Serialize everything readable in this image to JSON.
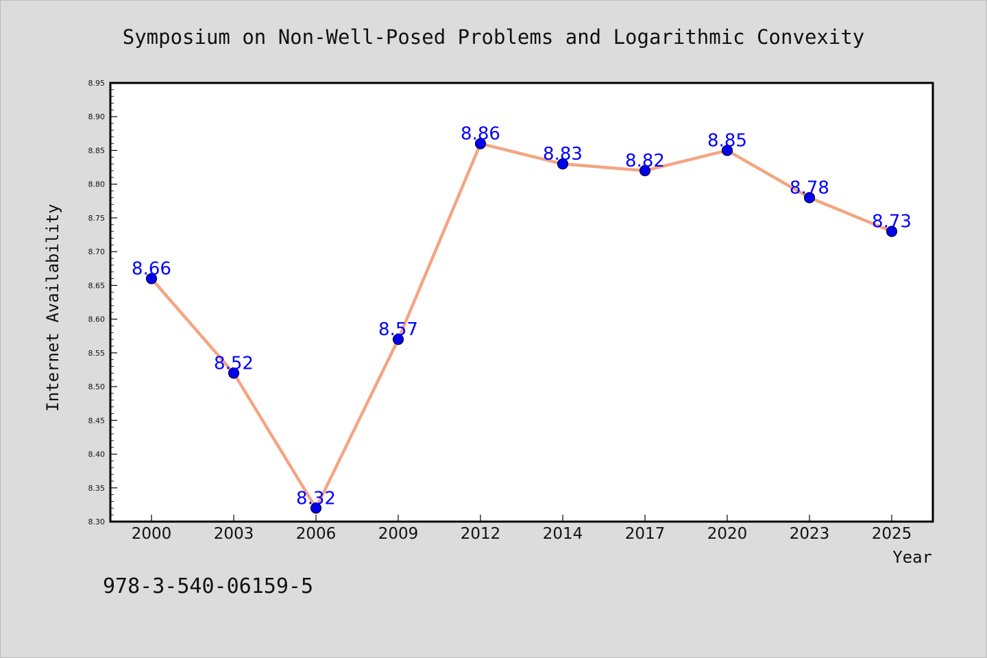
{
  "chart_data": {
    "type": "line",
    "title": "Symposium on Non-Well-Posed Problems and Logarithmic Convexity",
    "xlabel": "Year",
    "ylabel": "Internet Availability",
    "categories": [
      "2000",
      "2003",
      "2006",
      "2009",
      "2012",
      "2014",
      "2017",
      "2020",
      "2023",
      "2025"
    ],
    "series": [
      {
        "values": [
          8.66,
          8.52,
          8.32,
          8.57,
          8.86,
          8.83,
          8.82,
          8.85,
          8.78,
          8.73
        ]
      }
    ],
    "data_labels": [
      "8.66",
      "8.52",
      "8.32",
      "8.57",
      "8.86",
      "8.83",
      "8.82",
      "8.85",
      "8.78",
      "8.73"
    ],
    "ylim": [
      8.3,
      8.95
    ],
    "yticks": [
      "8.30",
      "8.35",
      "8.40",
      "8.45",
      "8.50",
      "8.55",
      "8.60",
      "8.65",
      "8.70",
      "8.75",
      "8.80",
      "8.85",
      "8.90",
      "8.95"
    ],
    "y_minor_step": 0.01,
    "grid": false,
    "legend": "none",
    "colors": {
      "line": "#f4a582",
      "marker_fill": "#0000ee",
      "marker_edge": "#000033",
      "data_label": "#0000ff",
      "plot_background": "#ffffff",
      "figure_background": "#dcdcdc"
    }
  },
  "footer": {
    "isbn": "978-3-540-06159-5"
  }
}
